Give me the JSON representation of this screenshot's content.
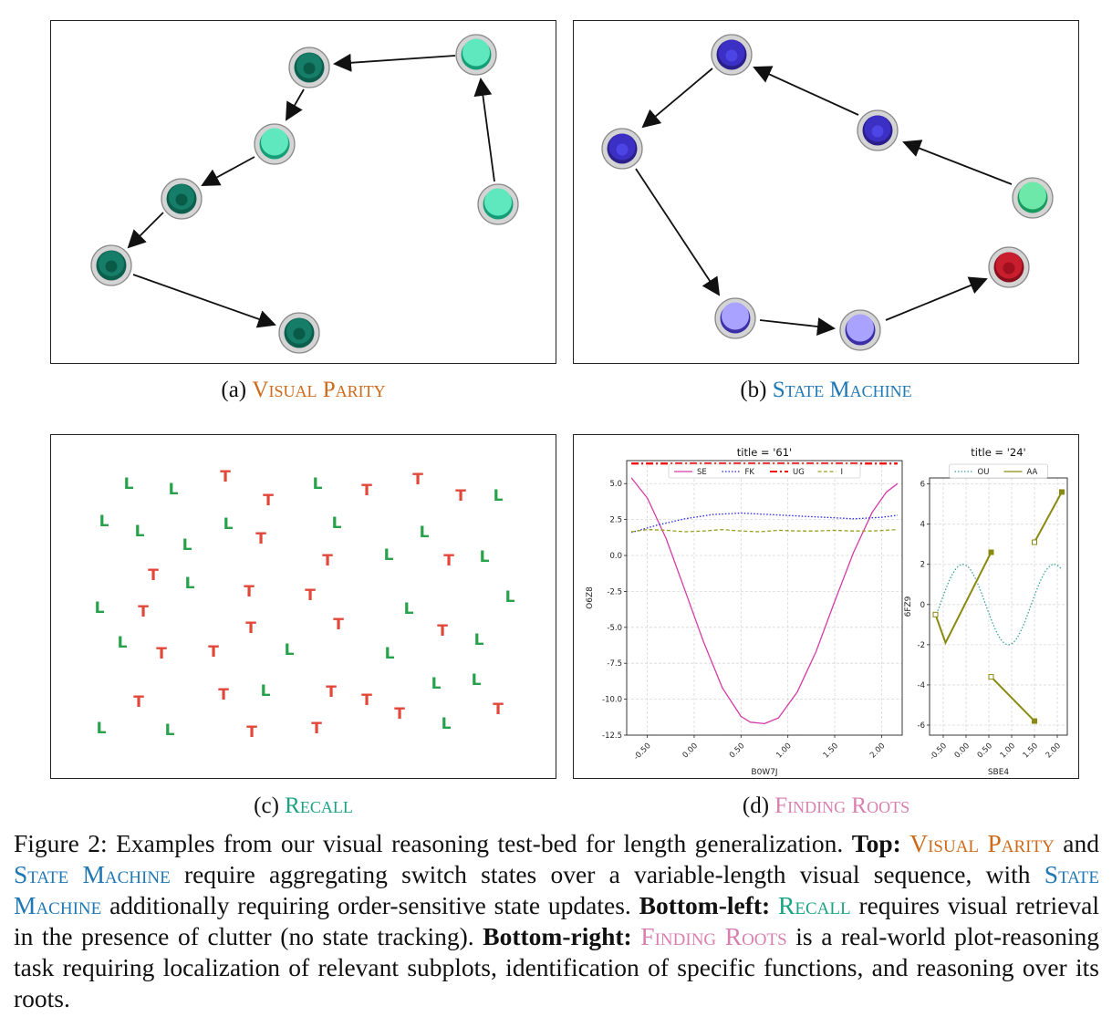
{
  "panels": {
    "a": {
      "label": "(a)",
      "name": "Visual Parity",
      "color": "#cc6a1a"
    },
    "b": {
      "label": "(b)",
      "name": "State Machine",
      "color": "#1f78b4"
    },
    "c": {
      "label": "(c)",
      "name": "Recall",
      "color": "#19a383"
    },
    "d": {
      "label": "(d)",
      "name": "Finding Roots",
      "color": "#d97fb0"
    }
  },
  "recall_letters": {
    "colors": {
      "L": "#27a24a",
      "T": "#e2483a"
    },
    "items": [
      [
        "L",
        140,
        530
      ],
      [
        "L",
        189,
        536
      ],
      [
        "T",
        246,
        522
      ],
      [
        "T",
        293,
        548
      ],
      [
        "L",
        347,
        530
      ],
      [
        "T",
        401,
        537
      ],
      [
        "T",
        457,
        525
      ],
      [
        "T",
        504,
        543
      ],
      [
        "L",
        545,
        543
      ],
      [
        "L",
        113,
        571
      ],
      [
        "L",
        152,
        582
      ],
      [
        "L",
        249,
        574
      ],
      [
        "T",
        285,
        590
      ],
      [
        "L",
        368,
        573
      ],
      [
        "L",
        464,
        583
      ],
      [
        "L",
        204,
        597
      ],
      [
        "T",
        358,
        614
      ],
      [
        "L",
        425,
        608
      ],
      [
        "T",
        491,
        614
      ],
      [
        "L",
        530,
        610
      ],
      [
        "T",
        167,
        630
      ],
      [
        "L",
        207,
        639
      ],
      [
        "T",
        272,
        648
      ],
      [
        "T",
        339,
        652
      ],
      [
        "L",
        558,
        654
      ],
      [
        "L",
        108,
        666
      ],
      [
        "T",
        156,
        670
      ],
      [
        "L",
        447,
        667
      ],
      [
        "T",
        274,
        688
      ],
      [
        "T",
        370,
        684
      ],
      [
        "T",
        484,
        691
      ],
      [
        "L",
        524,
        701
      ],
      [
        "L",
        133,
        704
      ],
      [
        "T",
        176,
        716
      ],
      [
        "T",
        233,
        714
      ],
      [
        "L",
        316,
        712
      ],
      [
        "L",
        426,
        716
      ],
      [
        "T",
        244,
        761
      ],
      [
        "L",
        290,
        757
      ],
      [
        "T",
        362,
        758
      ],
      [
        "T",
        401,
        767
      ],
      [
        "L",
        477,
        749
      ],
      [
        "L",
        521,
        745
      ],
      [
        "T",
        151,
        769
      ],
      [
        "T",
        437,
        782
      ],
      [
        "T",
        545,
        777
      ],
      [
        "L",
        110,
        798
      ],
      [
        "L",
        185,
        800
      ],
      [
        "T",
        275,
        802
      ],
      [
        "T",
        346,
        798
      ],
      [
        "L",
        488,
        793
      ]
    ]
  },
  "chart_data": [
    {
      "type": "line",
      "title": "title = '61'",
      "xlabel": "B0W7J",
      "ylabel": "O6Z8",
      "xlim": [
        -0.72,
        2.22
      ],
      "ylim": [
        -12.5,
        6.6
      ],
      "xticks": [
        -0.5,
        0.0,
        0.5,
        1.0,
        1.5,
        2.0
      ],
      "xtick_labels": [
        "-0.50",
        "0.00",
        "0.50",
        "1.00",
        "1.50",
        "2.00"
      ],
      "yticks": [
        5.0,
        2.5,
        0.0,
        -2.5,
        -5.0,
        -7.5,
        -10.0,
        -12.5
      ],
      "ytick_labels": [
        "5.0",
        "2.5",
        "0.0",
        "-2.5",
        "-5.0",
        "-7.5",
        "-10.0",
        "-12.5"
      ],
      "grid": true,
      "legend": "top",
      "series": [
        {
          "name": "SE",
          "color": "#d63aa7",
          "style": "solid",
          "x": [
            -0.67,
            -0.5,
            -0.3,
            -0.1,
            0.1,
            0.3,
            0.5,
            0.6,
            0.75,
            0.9,
            1.1,
            1.3,
            1.5,
            1.7,
            1.9,
            2.05,
            2.17
          ],
          "y": [
            5.4,
            4.0,
            1.2,
            -2.4,
            -6.0,
            -9.2,
            -11.2,
            -11.6,
            -11.7,
            -11.3,
            -9.5,
            -6.7,
            -3.2,
            0.2,
            3.0,
            4.4,
            5.0
          ]
        },
        {
          "name": "FK",
          "color": "#2222ee",
          "style": "dotted",
          "x": [
            -0.67,
            -0.4,
            -0.1,
            0.2,
            0.5,
            0.8,
            1.1,
            1.4,
            1.7,
            2.0,
            2.17
          ],
          "y": [
            1.6,
            2.1,
            2.55,
            2.85,
            2.95,
            2.85,
            2.75,
            2.65,
            2.55,
            2.65,
            2.8
          ]
        },
        {
          "name": "UG",
          "color": "#ee1111",
          "style": "dashdot",
          "x": [
            -0.67,
            2.17
          ],
          "y": [
            6.4,
            6.4
          ]
        },
        {
          "name": "I",
          "color": "#9aa020",
          "style": "dashed",
          "x": [
            -0.67,
            -0.5,
            -0.3,
            -0.1,
            0.1,
            0.3,
            0.5,
            0.7,
            0.9,
            1.1,
            1.3,
            1.5,
            1.7,
            1.9,
            2.17
          ],
          "y": [
            1.65,
            1.8,
            1.75,
            1.65,
            1.7,
            1.8,
            1.7,
            1.65,
            1.75,
            1.7,
            1.7,
            1.75,
            1.7,
            1.7,
            1.8
          ]
        }
      ]
    },
    {
      "type": "line",
      "title": "title = '24'",
      "xlabel": "SBE4",
      "ylabel": "6FZ9",
      "xlim": [
        -0.8,
        2.22
      ],
      "ylim": [
        -6.5,
        6.3
      ],
      "xticks": [
        -0.5,
        0.0,
        0.5,
        1.0,
        1.5,
        2.0
      ],
      "xtick_labels": [
        "-0.50",
        "0.00",
        "0.50",
        "1.00",
        "1.50",
        "2.00"
      ],
      "yticks": [
        6,
        4,
        2,
        0,
        -2,
        -4,
        -6
      ],
      "ytick_labels": [
        "6",
        "4",
        "2",
        "0",
        "-2",
        "-4",
        "-6"
      ],
      "grid": true,
      "legend": "top",
      "series": [
        {
          "name": "OU",
          "color": "#3aa39a",
          "style": "dotted",
          "function": "2*sin(pi*(x+0.57))",
          "x_range": [
            -0.67,
            2.1
          ]
        },
        {
          "name": "AA",
          "color": "#8a8a10",
          "style": "solid",
          "segments": [
            [
              [
                -0.67,
                -0.5
              ],
              [
                -0.45,
                -1.9
              ],
              [
                0.55,
                2.6
              ]
            ],
            [
              [
                1.5,
                3.1
              ],
              [
                2.1,
                5.6
              ]
            ],
            [
              [
                0.55,
                -3.6
              ],
              [
                1.5,
                -5.8
              ]
            ]
          ]
        }
      ]
    }
  ],
  "caption": {
    "fig": "Figure 2:",
    "p1": " Examples from our visual reasoning test-bed for length generalization. ",
    "top_label": "Top:",
    "vp": "Visual Parity",
    "and": " and ",
    "sm": "State Machine",
    "p2": " require aggregating switch states over a variable-length visual sequence, with ",
    "sm2": "State Machine",
    "p3": " additionally requiring order-sensitive state updates. ",
    "bl_label": "Bottom-left:",
    "recall": "Recall",
    "p4": " requires visual retrieval in the presence of clutter (no state tracking). ",
    "br_label": "Bottom-right:",
    "fr": "Finding Roots",
    "p5": " is a real-world plot-reasoning task requiring localization of relevant subplots, identification of specific functions, and reasoning over its roots."
  }
}
